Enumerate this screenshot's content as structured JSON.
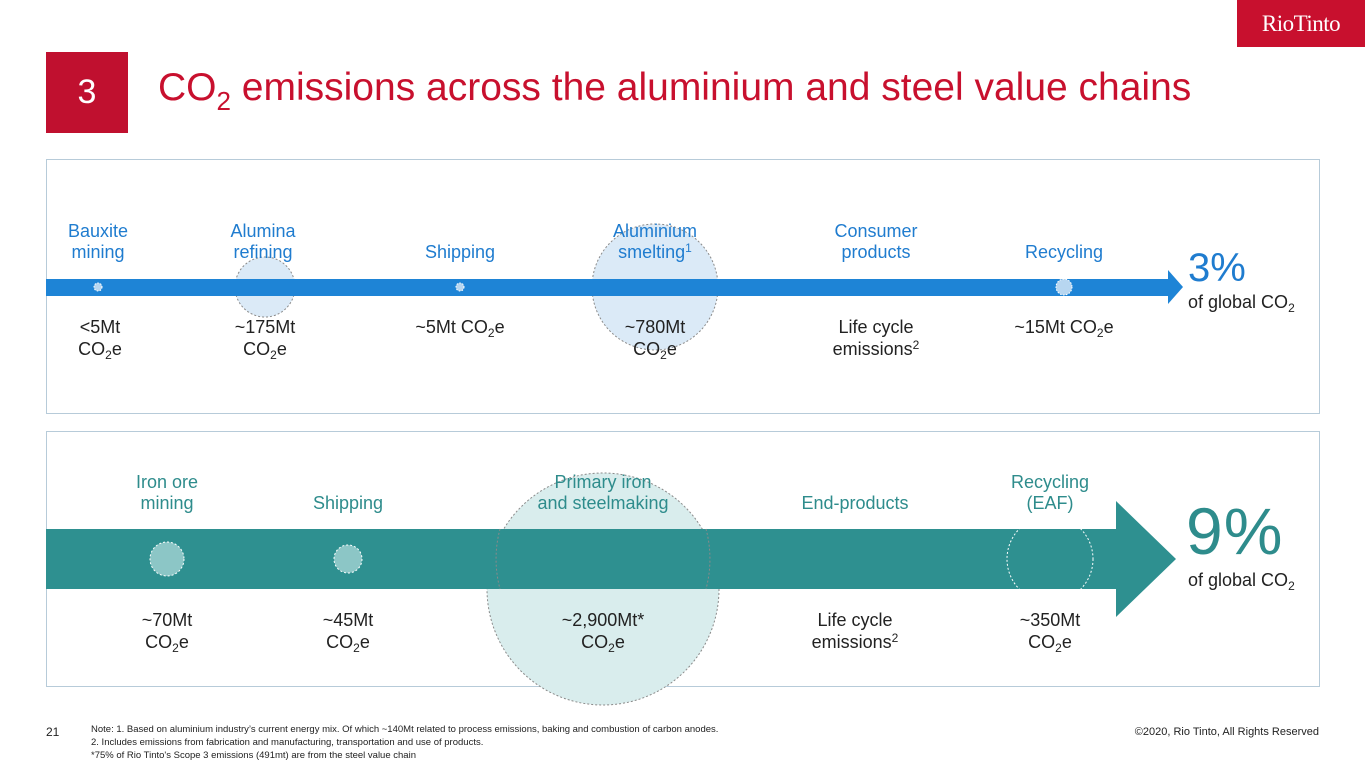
{
  "brand": {
    "logo_text": "RioTinto",
    "color": "#c8102e"
  },
  "section": {
    "number": "3"
  },
  "title": {
    "prefix": "CO",
    "sub": "2",
    "rest": " emissions across the aluminium and steel value chains"
  },
  "aluminium": {
    "accent": "#1f7ccf",
    "stages": [
      {
        "line1": "Bauxite",
        "line2": "mining",
        "sup": ""
      },
      {
        "line1": "Alumina",
        "line2": "refining",
        "sup": ""
      },
      {
        "line1": "",
        "line2": "Shipping",
        "sup": ""
      },
      {
        "line1": "Aluminium",
        "line2": "smelting",
        "sup": "1"
      },
      {
        "line1": "Consumer",
        "line2": "products",
        "sup": ""
      },
      {
        "line1": "",
        "line2": "Recycling",
        "sup": ""
      }
    ],
    "values": [
      {
        "line1": "<5Mt",
        "l2a": "CO",
        "l2sub": "2",
        "l2b": "e",
        "l2sup": ""
      },
      {
        "line1": "~175Mt",
        "l2a": "CO",
        "l2sub": "2",
        "l2b": "e",
        "l2sup": ""
      },
      {
        "line1": "~5Mt CO",
        "line1_sub": "2",
        "line1_b": "e",
        "l2a": "",
        "l2sub": "",
        "l2b": "",
        "l2sup": ""
      },
      {
        "line1": "~780Mt",
        "l2a": "CO",
        "l2sub": "2",
        "l2b": "e",
        "l2sup": ""
      },
      {
        "line1": "Life cycle",
        "l2a": "emissions",
        "l2sub": "",
        "l2b": "",
        "l2sup": "2"
      },
      {
        "line1": "~15Mt CO",
        "line1_sub": "2",
        "line1_b": "e",
        "l2a": "",
        "l2sub": "",
        "l2b": "",
        "l2sup": ""
      }
    ],
    "share": {
      "percent": "3%",
      "label": "of global CO",
      "label_sub": "2"
    }
  },
  "steel": {
    "accent": "#2e8c8c",
    "stages": [
      {
        "line1": "Iron ore",
        "line2": "mining"
      },
      {
        "line1": "",
        "line2": "Shipping"
      },
      {
        "line1": "Primary iron",
        "line2": "and steelmaking"
      },
      {
        "line1": "",
        "line2": "End-products"
      },
      {
        "line1": "Recycling",
        "line2": "(EAF)"
      }
    ],
    "values": [
      {
        "line1": "~70Mt",
        "l2a": "CO",
        "l2sub": "2",
        "l2b": "e",
        "l2sup": ""
      },
      {
        "line1": "~45Mt",
        "l2a": "CO",
        "l2sub": "2",
        "l2b": "e",
        "l2sup": ""
      },
      {
        "line1": "~2,900Mt*",
        "l2a": "CO",
        "l2sub": "2",
        "l2b": "e",
        "l2sup": ""
      },
      {
        "line1": "Life cycle",
        "l2a": "emissions",
        "l2sub": "",
        "l2b": "",
        "l2sup": "2"
      },
      {
        "line1": "~350Mt",
        "l2a": "CO",
        "l2sub": "2",
        "l2b": "e",
        "l2sup": ""
      }
    ],
    "share": {
      "percent": "9%",
      "label": "of global CO",
      "label_sub": "2"
    }
  },
  "footer": {
    "page_number": "21",
    "notes": [
      "Note: 1. Based on aluminium industry’s current energy mix. Of which ~140Mt related to process emissions, baking and combustion of carbon anodes.",
      "2. Includes emissions from fabrication and manufacturing, transportation and use of products.",
      "*75% of Rio Tinto's Scope 3 emissions (491mt) are from the steel value chain"
    ],
    "copyright": "©2020, Rio Tinto, All Rights Reserved"
  }
}
